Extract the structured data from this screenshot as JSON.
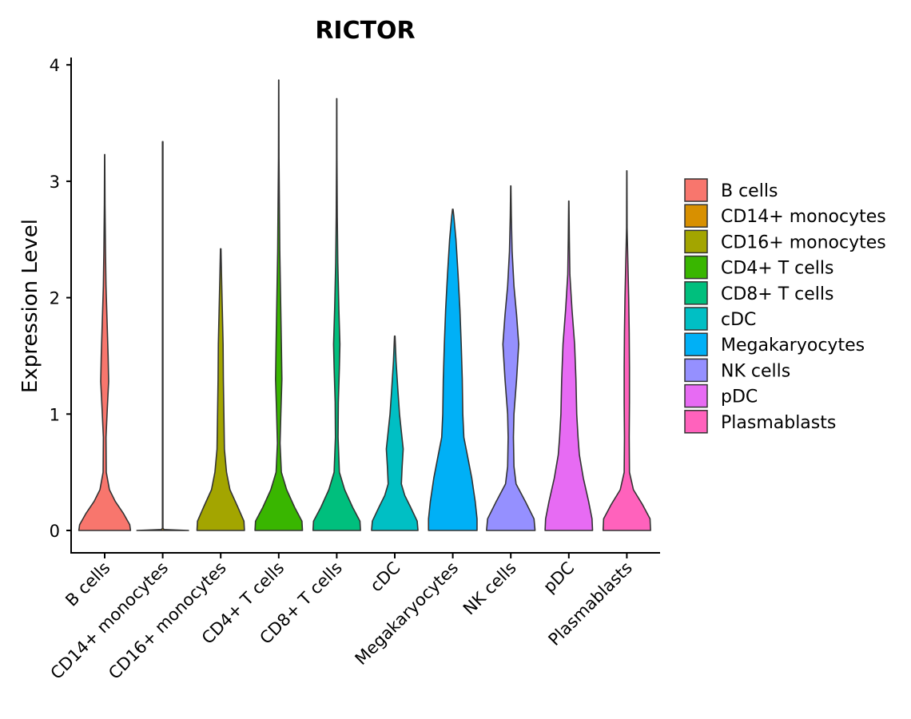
{
  "chart_data": {
    "type": "violin",
    "title": "RICTOR",
    "xlabel": "",
    "ylabel": "Expression Level",
    "ylim": [
      -0.15,
      4.05
    ],
    "yticks": [
      0,
      1,
      2,
      3,
      4
    ],
    "ytick_labels": [
      "0",
      "1",
      "2",
      "3",
      "4"
    ],
    "grid": false,
    "legend_position": "right",
    "categories": [
      "B cells",
      "CD14+ monocytes",
      "CD16+ monocytes",
      "CD4+ T cells",
      "CD8+ T cells",
      "cDC",
      "Megakaryocytes",
      "NK cells",
      "pDC",
      "Plasmablasts"
    ],
    "colors": [
      "#F8766D",
      "#D89000",
      "#A3A500",
      "#39B600",
      "#00BF7D",
      "#00BFC4",
      "#00B0F6",
      "#9590FF",
      "#E76BF3",
      "#FF62BC"
    ],
    "series": [
      {
        "name": "B cells",
        "max": 3.23,
        "profile": [
          [
            0,
            0.98
          ],
          [
            0.05,
            0.95
          ],
          [
            0.15,
            0.7
          ],
          [
            0.25,
            0.4
          ],
          [
            0.35,
            0.18
          ],
          [
            0.5,
            0.06
          ],
          [
            0.8,
            0.05
          ],
          [
            1.05,
            0.1
          ],
          [
            1.28,
            0.15
          ],
          [
            1.5,
            0.13
          ],
          [
            1.8,
            0.09
          ],
          [
            2.1,
            0.05
          ],
          [
            2.4,
            0.03
          ],
          [
            2.8,
            0.012
          ],
          [
            3.23,
            0.004
          ]
        ]
      },
      {
        "name": "CD14+ monocytes",
        "max": 3.34,
        "profile": [
          [
            0,
            0.98
          ],
          [
            0.003,
            0.6
          ],
          [
            0.008,
            0.05
          ],
          [
            0.02,
            0.01
          ],
          [
            3.34,
            0.01
          ]
        ]
      },
      {
        "name": "CD16+ monocytes",
        "max": 2.42,
        "profile": [
          [
            0,
            0.9
          ],
          [
            0.08,
            0.88
          ],
          [
            0.2,
            0.65
          ],
          [
            0.35,
            0.35
          ],
          [
            0.5,
            0.22
          ],
          [
            0.7,
            0.14
          ],
          [
            1.0,
            0.12
          ],
          [
            1.3,
            0.1
          ],
          [
            1.6,
            0.09
          ],
          [
            1.9,
            0.06
          ],
          [
            2.2,
            0.03
          ],
          [
            2.42,
            0.01
          ]
        ]
      },
      {
        "name": "CD4+ T cells",
        "max": 3.87,
        "profile": [
          [
            0,
            0.9
          ],
          [
            0.08,
            0.88
          ],
          [
            0.2,
            0.6
          ],
          [
            0.35,
            0.3
          ],
          [
            0.5,
            0.1
          ],
          [
            0.75,
            0.05
          ],
          [
            1.0,
            0.08
          ],
          [
            1.3,
            0.12
          ],
          [
            1.6,
            0.1
          ],
          [
            2.0,
            0.07
          ],
          [
            2.4,
            0.04
          ],
          [
            2.8,
            0.025
          ],
          [
            3.2,
            0.01
          ],
          [
            3.87,
            0.004
          ]
        ]
      },
      {
        "name": "CD8+ T cells",
        "max": 3.71,
        "profile": [
          [
            0,
            0.9
          ],
          [
            0.08,
            0.88
          ],
          [
            0.2,
            0.6
          ],
          [
            0.35,
            0.3
          ],
          [
            0.5,
            0.1
          ],
          [
            0.8,
            0.05
          ],
          [
            1.1,
            0.06
          ],
          [
            1.4,
            0.1
          ],
          [
            1.6,
            0.12
          ],
          [
            1.9,
            0.08
          ],
          [
            2.3,
            0.04
          ],
          [
            2.7,
            0.02
          ],
          [
            3.2,
            0.008
          ],
          [
            3.71,
            0.004
          ]
        ]
      },
      {
        "name": "cDC",
        "max": 1.67,
        "profile": [
          [
            0,
            0.88
          ],
          [
            0.08,
            0.85
          ],
          [
            0.2,
            0.6
          ],
          [
            0.3,
            0.38
          ],
          [
            0.4,
            0.25
          ],
          [
            0.55,
            0.28
          ],
          [
            0.7,
            0.32
          ],
          [
            0.85,
            0.25
          ],
          [
            1.0,
            0.18
          ],
          [
            1.2,
            0.12
          ],
          [
            1.45,
            0.05
          ],
          [
            1.67,
            0.01
          ]
        ]
      },
      {
        "name": "Megakaryocytes",
        "max": 2.76,
        "profile": [
          [
            0,
            0.92
          ],
          [
            0.1,
            0.92
          ],
          [
            0.25,
            0.85
          ],
          [
            0.45,
            0.72
          ],
          [
            0.65,
            0.55
          ],
          [
            0.8,
            0.42
          ],
          [
            1.0,
            0.38
          ],
          [
            1.3,
            0.36
          ],
          [
            1.6,
            0.32
          ],
          [
            1.9,
            0.27
          ],
          [
            2.2,
            0.2
          ],
          [
            2.5,
            0.12
          ],
          [
            2.7,
            0.04
          ],
          [
            2.76,
            0.01
          ]
        ]
      },
      {
        "name": "NK cells",
        "max": 2.96,
        "profile": [
          [
            0,
            0.92
          ],
          [
            0.1,
            0.88
          ],
          [
            0.25,
            0.55
          ],
          [
            0.4,
            0.2
          ],
          [
            0.55,
            0.12
          ],
          [
            0.8,
            0.1
          ],
          [
            1.0,
            0.12
          ],
          [
            1.3,
            0.22
          ],
          [
            1.6,
            0.3
          ],
          [
            1.85,
            0.22
          ],
          [
            2.1,
            0.12
          ],
          [
            2.4,
            0.05
          ],
          [
            2.7,
            0.02
          ],
          [
            2.96,
            0.005
          ]
        ]
      },
      {
        "name": "pDC",
        "max": 2.83,
        "profile": [
          [
            0,
            0.9
          ],
          [
            0.1,
            0.88
          ],
          [
            0.25,
            0.75
          ],
          [
            0.45,
            0.55
          ],
          [
            0.65,
            0.4
          ],
          [
            0.8,
            0.35
          ],
          [
            1.0,
            0.3
          ],
          [
            1.3,
            0.27
          ],
          [
            1.6,
            0.22
          ],
          [
            1.9,
            0.12
          ],
          [
            2.2,
            0.04
          ],
          [
            2.5,
            0.02
          ],
          [
            2.83,
            0.005
          ]
        ]
      },
      {
        "name": "Plasmablasts",
        "max": 3.09,
        "profile": [
          [
            0,
            0.9
          ],
          [
            0.1,
            0.88
          ],
          [
            0.22,
            0.6
          ],
          [
            0.35,
            0.25
          ],
          [
            0.5,
            0.1
          ],
          [
            0.8,
            0.09
          ],
          [
            1.1,
            0.1
          ],
          [
            1.4,
            0.1
          ],
          [
            1.7,
            0.09
          ],
          [
            2.0,
            0.07
          ],
          [
            2.3,
            0.04
          ],
          [
            2.6,
            0.01
          ],
          [
            3.09,
            0.004
          ]
        ]
      }
    ]
  }
}
